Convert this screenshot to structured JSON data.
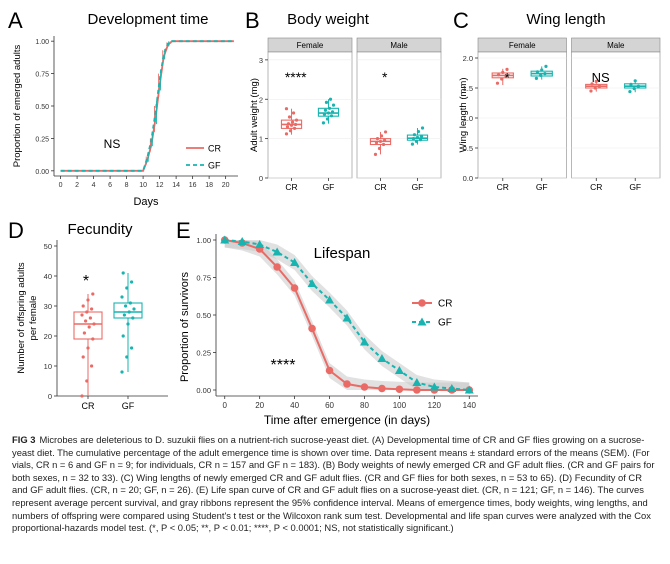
{
  "colors": {
    "cr": "#ea6b66",
    "gf": "#19b4b0",
    "ribbon": "#c8c8c8",
    "strip": "#d4d4d4",
    "grid": "#e9e9e9"
  },
  "panels": {
    "a": "A",
    "b": "B",
    "c": "C",
    "d": "D",
    "e": "E"
  },
  "chart_data": [
    {
      "id": "development",
      "type": "line",
      "title": "Development time",
      "xlabel": "Days",
      "ylabel": "Proportion of emerged adults",
      "xlim": [
        0,
        21
      ],
      "ylim": [
        0,
        1
      ],
      "xticks": [
        "0",
        "2",
        "4",
        "6",
        "8",
        "10",
        "12",
        "14",
        "16",
        "18",
        "20"
      ],
      "yticks": [
        "0.00",
        "0.25",
        "0.50",
        "0.75",
        "1.00"
      ],
      "annotation": "NS",
      "legend_position": "right",
      "series": [
        {
          "name": "CR",
          "x": [
            0,
            10,
            10.5,
            11,
            11.5,
            12,
            12.5,
            13,
            13.5,
            14,
            21
          ],
          "y": [
            0,
            0,
            0.08,
            0.2,
            0.4,
            0.66,
            0.88,
            0.97,
            1,
            1,
            1
          ],
          "sem": [
            0,
            0,
            0.03,
            0.05,
            0.1,
            0.09,
            0.05,
            0.02,
            0,
            0,
            0
          ]
        },
        {
          "name": "GF",
          "x": [
            0,
            10,
            10.5,
            11,
            11.5,
            12,
            12.5,
            13,
            13.5,
            14,
            21
          ],
          "y": [
            0,
            0,
            0.1,
            0.24,
            0.45,
            0.7,
            0.9,
            0.98,
            1,
            1,
            1
          ],
          "sem": [
            0,
            0,
            0.03,
            0.05,
            0.09,
            0.08,
            0.04,
            0.02,
            0,
            0,
            0
          ]
        }
      ]
    },
    {
      "id": "body_weight",
      "type": "box",
      "title": "Body weight",
      "ylabel": "Adult weight (mg)",
      "ylim": [
        0,
        3.2
      ],
      "yticks": [
        "0",
        "1",
        "2",
        "3"
      ],
      "facets": [
        {
          "name": "Female",
          "annotation": "****",
          "boxes": [
            {
              "category": "CR",
              "q1": 1.26,
              "median": 1.36,
              "q3": 1.47,
              "whisker_low": 1.1,
              "whisker_high": 1.76,
              "points": [
                1.12,
                1.2,
                1.26,
                1.3,
                1.34,
                1.36,
                1.38,
                1.42,
                1.47,
                1.55,
                1.65,
                1.76
              ]
            },
            {
              "category": "GF",
              "q1": 1.57,
              "median": 1.65,
              "q3": 1.77,
              "whisker_low": 1.38,
              "whisker_high": 2.0,
              "points": [
                1.4,
                1.5,
                1.58,
                1.62,
                1.65,
                1.68,
                1.72,
                1.77,
                1.85,
                1.92,
                2.0
              ]
            }
          ]
        },
        {
          "name": "Male",
          "annotation": "*",
          "boxes": [
            {
              "category": "CR",
              "q1": 0.85,
              "median": 0.93,
              "q3": 1.0,
              "whisker_low": 0.6,
              "whisker_high": 1.17,
              "points": [
                0.6,
                0.75,
                0.85,
                0.9,
                0.93,
                0.96,
                1.0,
                1.07,
                1.17
              ]
            },
            {
              "category": "GF",
              "q1": 0.96,
              "median": 1.01,
              "q3": 1.09,
              "whisker_low": 0.85,
              "whisker_high": 1.27,
              "points": [
                0.86,
                0.93,
                0.97,
                1.0,
                1.03,
                1.06,
                1.1,
                1.18,
                1.27
              ]
            }
          ]
        }
      ]
    },
    {
      "id": "wing_length",
      "type": "box",
      "title": "Wing length",
      "ylabel": "Wing length (mm)",
      "ylim": [
        0,
        2.1
      ],
      "yticks": [
        "0.0",
        "0.5",
        "1.0",
        "1.5",
        "2.0"
      ],
      "facets": [
        {
          "name": "Female",
          "annotation": "*",
          "boxes": [
            {
              "category": "CR",
              "q1": 1.67,
              "median": 1.71,
              "q3": 1.75,
              "whisker_low": 1.55,
              "whisker_high": 1.82,
              "points": [
                1.58,
                1.65,
                1.7,
                1.72,
                1.76,
                1.81
              ]
            },
            {
              "category": "GF",
              "q1": 1.7,
              "median": 1.74,
              "q3": 1.78,
              "whisker_low": 1.64,
              "whisker_high": 1.86,
              "points": [
                1.66,
                1.71,
                1.74,
                1.77,
                1.8,
                1.86
              ]
            }
          ]
        },
        {
          "name": "Male",
          "annotation": "NS",
          "boxes": [
            {
              "category": "CR",
              "q1": 1.5,
              "median": 1.53,
              "q3": 1.56,
              "whisker_low": 1.44,
              "whisker_high": 1.62,
              "points": [
                1.45,
                1.5,
                1.53,
                1.57,
                1.61
              ]
            },
            {
              "category": "GF",
              "q1": 1.5,
              "median": 1.53,
              "q3": 1.57,
              "whisker_low": 1.43,
              "whisker_high": 1.62,
              "points": [
                1.44,
                1.49,
                1.53,
                1.56,
                1.62
              ]
            }
          ]
        }
      ]
    },
    {
      "id": "fecundity",
      "type": "box",
      "title": "Fecundity",
      "ylabel": "Number of offspring adults per female",
      "ylim": [
        0,
        52
      ],
      "yticks": [
        "0",
        "10",
        "20",
        "30",
        "40",
        "50"
      ],
      "annotation": "*",
      "boxes": [
        {
          "category": "CR",
          "q1": 19,
          "median": 24,
          "q3": 28,
          "whisker_low": 0,
          "whisker_high": 34,
          "points": [
            0,
            5,
            10,
            13,
            16,
            19,
            21,
            23,
            24,
            25,
            26,
            27,
            28,
            29,
            30,
            32,
            34
          ]
        },
        {
          "category": "GF",
          "q1": 26,
          "median": 28,
          "q3": 31,
          "whisker_low": 8,
          "whisker_high": 41,
          "points": [
            8,
            13,
            16,
            20,
            24,
            26,
            27,
            28,
            29,
            30,
            31,
            33,
            36,
            38,
            41
          ]
        }
      ]
    },
    {
      "id": "lifespan",
      "type": "line",
      "title": "Lifespan",
      "xlabel": "Time after emergence (in days)",
      "ylabel": "Proportion of survivors",
      "xlim": [
        -5,
        145
      ],
      "ylim": [
        0,
        1.04
      ],
      "xticks": [
        "0",
        "20",
        "40",
        "60",
        "80",
        "100",
        "120",
        "140"
      ],
      "yticks": [
        "0.00",
        "0.25",
        "0.50",
        "0.75",
        "1.00"
      ],
      "annotation": "****",
      "legend_position": "right",
      "series": [
        {
          "name": "CR",
          "x": [
            0,
            10,
            20,
            30,
            40,
            50,
            60,
            70,
            80,
            90,
            100,
            110,
            120,
            130,
            140
          ],
          "y": [
            1,
            0.98,
            0.94,
            0.82,
            0.68,
            0.41,
            0.13,
            0.04,
            0.02,
            0.01,
            0.005,
            0,
            0,
            0,
            0
          ],
          "ci": 0.05
        },
        {
          "name": "GF",
          "x": [
            0,
            10,
            20,
            30,
            40,
            50,
            60,
            70,
            80,
            90,
            100,
            110,
            120,
            130,
            140
          ],
          "y": [
            1,
            0.99,
            0.97,
            0.92,
            0.85,
            0.71,
            0.6,
            0.48,
            0.32,
            0.21,
            0.13,
            0.05,
            0.02,
            0.01,
            0
          ],
          "ci": 0.05
        }
      ]
    }
  ],
  "caption": {
    "label": "FIG 3",
    "text": "Microbes are deleterious to D. suzukii flies on a nutrient-rich sucrose-yeast diet. (A) Developmental time of CR and GF flies growing on a sucrose-yeast diet. The cumulative percentage of the adult emergence time is shown over time. Data represent means ± standard errors of the means (SEM). (For vials, CR n = 6 and GF n = 9; for individuals, CR n = 157 and GF n = 183). (B) Body weights of newly emerged CR and GF adult flies. (CR and GF pairs for both sexes, n = 32 to 33). (C) Wing lengths of newly emerged CR and GF adult flies. (CR and GF flies for both sexes, n = 53 to 65). (D) Fecundity of CR and GF adult flies. (CR, n = 20; GF, n = 26). (E) Life span curve of CR and GF adult flies on a sucrose-yeast diet. (CR, n = 121; GF, n = 146). The curves represent average percent survival, and gray ribbons represent the 95% confidence interval. Means of emergence times, body weights, wing lengths, and numbers of offspring were compared using Student's t test or the Wilcoxon rank sum test. Developmental and life span curves were analyzed with the Cox proportional-hazards model test. (*, P < 0.05; **, P < 0.01; ****, P < 0.0001; NS, not statistically significant.)"
  }
}
